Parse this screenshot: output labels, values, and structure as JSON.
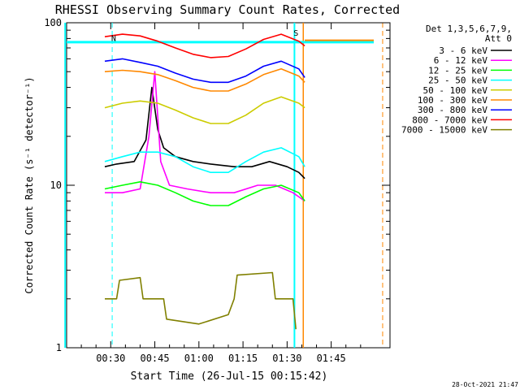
{
  "chart_data": {
    "type": "line",
    "title": "RHESSI Observing Summary Count Rates, Corrected",
    "xlabel": "Start Time (26-Jul-15 00:15:42)",
    "ylabel": "Corrected Count Rate (s⁻¹ detector⁻¹)",
    "yscale": "log",
    "ylim": [
      1,
      100
    ],
    "xlim": [
      15,
      125
    ],
    "x_unit": "minutes after 00:00",
    "x_ticks": [
      {
        "value": 30,
        "label": "00:30"
      },
      {
        "value": 45,
        "label": "00:45"
      },
      {
        "value": 60,
        "label": "01:00"
      },
      {
        "value": 75,
        "label": "01:15"
      },
      {
        "value": 90,
        "label": "01:30"
      },
      {
        "value": 105,
        "label": "01:45"
      }
    ],
    "y_ticks": [
      {
        "value": 1,
        "label": "1"
      },
      {
        "value": 10,
        "label": "10"
      },
      {
        "value": 100,
        "label": "100"
      }
    ],
    "legend": {
      "placement": "right",
      "header": [
        "Det 1,3,5,6,7,9,",
        "Att 0"
      ]
    },
    "annotations": [
      {
        "text": "N",
        "x": 31,
        "y": 77
      },
      {
        "text": "S",
        "x": 93,
        "y": 83
      }
    ],
    "footer_date": "28-Oct-2021 21:47",
    "markers": {
      "cyan_vertical_lines_x": [
        14.5,
        92.5
      ],
      "cyan_dashed_vertical_x": [
        30.5
      ],
      "orange_vertical_lines_x": [
        95.5
      ],
      "orange_dashed_vertical_x": [
        122.5
      ],
      "cyan_horizontal_y": 76,
      "orange_horizontal_y": 78
    },
    "series": [
      {
        "name": "3 - 6 keV",
        "color": "#000000",
        "x": [
          28,
          32,
          38,
          42,
          44,
          46,
          48,
          52,
          58,
          64,
          72,
          78,
          84,
          90,
          94,
          96
        ],
        "y": [
          13,
          13.5,
          14,
          19,
          40,
          22,
          17,
          15,
          14,
          13.5,
          13,
          13,
          14,
          13,
          12,
          11
        ]
      },
      {
        "name": "6 - 12 keV",
        "color": "#ff00ff",
        "x": [
          28,
          34,
          40,
          43,
          45,
          47,
          50,
          56,
          64,
          72,
          80,
          86,
          92,
          96
        ],
        "y": [
          9,
          9,
          9.5,
          20,
          50,
          14,
          10,
          9.5,
          9,
          9,
          10,
          10,
          9,
          8
        ]
      },
      {
        "name": "12 - 25 keV",
        "color": "#00ff00",
        "x": [
          28,
          34,
          40,
          46,
          52,
          58,
          64,
          70,
          76,
          82,
          88,
          94,
          96
        ],
        "y": [
          9.5,
          10,
          10.5,
          10,
          9,
          8,
          7.5,
          7.5,
          8.5,
          9.5,
          10,
          9,
          8
        ]
      },
      {
        "name": "25 - 50 keV",
        "color": "#00ffff",
        "x": [
          28,
          34,
          40,
          46,
          52,
          58,
          64,
          70,
          76,
          82,
          88,
          94,
          96
        ],
        "y": [
          14,
          15,
          16,
          16,
          15,
          13,
          12,
          12,
          14,
          16,
          17,
          15,
          13
        ]
      },
      {
        "name": "50 - 100 keV",
        "color": "#cccc00",
        "x": [
          28,
          34,
          40,
          46,
          52,
          58,
          64,
          70,
          76,
          82,
          88,
          94,
          96
        ],
        "y": [
          30,
          32,
          33,
          32,
          29,
          26,
          24,
          24,
          27,
          32,
          35,
          32,
          30
        ]
      },
      {
        "name": "100 - 300 keV",
        "color": "#ff8800",
        "x": [
          28,
          34,
          40,
          46,
          52,
          58,
          64,
          70,
          76,
          82,
          88,
          94,
          96
        ],
        "y": [
          50,
          51,
          50,
          48,
          44,
          40,
          38,
          38,
          42,
          48,
          52,
          47,
          43
        ]
      },
      {
        "name": "300 - 800 keV",
        "color": "#0000ff",
        "x": [
          28,
          34,
          40,
          46,
          52,
          58,
          64,
          70,
          76,
          82,
          88,
          94,
          96
        ],
        "y": [
          58,
          60,
          57,
          54,
          49,
          45,
          43,
          43,
          47,
          54,
          58,
          52,
          46
        ]
      },
      {
        "name": "800 - 7000 keV",
        "color": "#ff0000",
        "x": [
          28,
          34,
          40,
          46,
          52,
          58,
          64,
          70,
          76,
          82,
          88,
          94,
          96
        ],
        "y": [
          82,
          85,
          83,
          77,
          70,
          64,
          61,
          62,
          69,
          79,
          85,
          77,
          72
        ]
      },
      {
        "name": "7000 - 15000 keV",
        "color": "#808000",
        "x": [
          28,
          32,
          33,
          40,
          41,
          48,
          49,
          60,
          70,
          72,
          73,
          85,
          86,
          92,
          93
        ],
        "y": [
          2,
          2,
          2.6,
          2.7,
          2,
          2,
          1.5,
          1.4,
          1.6,
          2,
          2.8,
          2.9,
          2,
          2,
          1.3
        ]
      }
    ]
  }
}
